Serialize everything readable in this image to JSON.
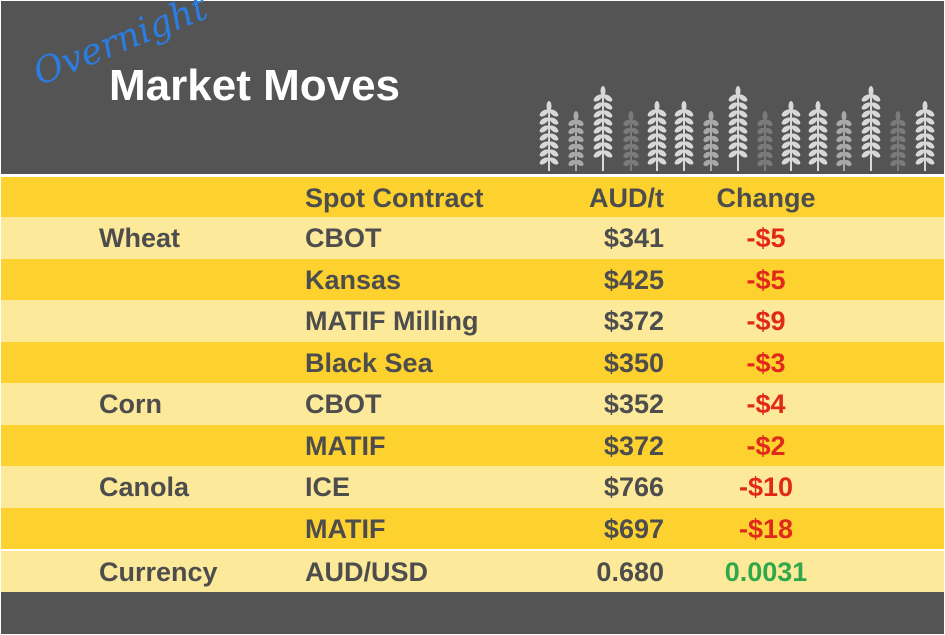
{
  "header": {
    "kicker": "Overnight",
    "title": "Market Moves",
    "colors": {
      "background": "#545454",
      "kicker": "#2a7de1",
      "title": "#ffffff"
    },
    "icon": "wheat-stalks-icon"
  },
  "table": {
    "columns": [
      "",
      "Spot Contract",
      "AUD/t",
      "Change"
    ],
    "rows": [
      {
        "commodity": "Wheat",
        "contract": "CBOT",
        "price": "$341",
        "change": "-$5",
        "direction": "down"
      },
      {
        "commodity": "",
        "contract": "Kansas",
        "price": "$425",
        "change": "-$5",
        "direction": "down"
      },
      {
        "commodity": "",
        "contract": "MATIF Milling",
        "price": "$372",
        "change": "-$9",
        "direction": "down"
      },
      {
        "commodity": "",
        "contract": "Black Sea",
        "price": "$350",
        "change": "-$3",
        "direction": "down"
      },
      {
        "commodity": "Corn",
        "contract": "CBOT",
        "price": "$352",
        "change": "-$4",
        "direction": "down"
      },
      {
        "commodity": "",
        "contract": "MATIF",
        "price": "$372",
        "change": "-$2",
        "direction": "down"
      },
      {
        "commodity": "Canola",
        "contract": "ICE",
        "price": "$766",
        "change": "-$10",
        "direction": "down"
      },
      {
        "commodity": "",
        "contract": "MATIF",
        "price": "$697",
        "change": "-$18",
        "direction": "down"
      },
      {
        "commodity": "Currency",
        "contract": "AUD/USD",
        "price": "0.680",
        "change": "0.0031",
        "direction": "up"
      }
    ],
    "colors": {
      "header": "#fdd22f",
      "row_dark": "#fdd22f",
      "row_light": "#fde99a",
      "negative": "#e0291b",
      "positive": "#2ea84a"
    }
  }
}
